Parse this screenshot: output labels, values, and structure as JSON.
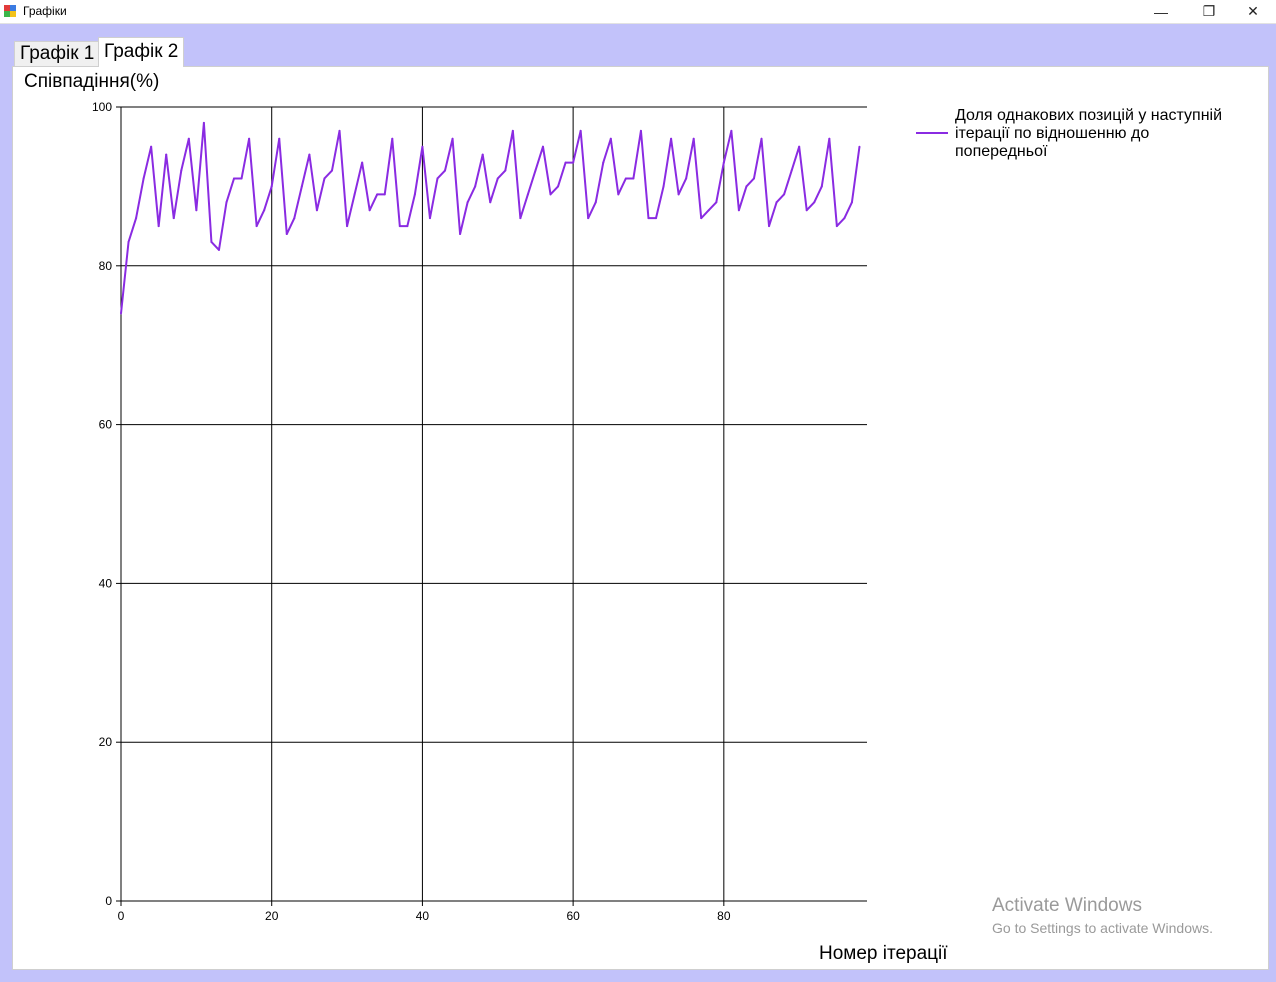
{
  "window": {
    "title": "Графіки",
    "minimize": "—",
    "maximize": "❐",
    "close": "✕"
  },
  "tabs": [
    {
      "label": "Графік 1",
      "selected": false
    },
    {
      "label": "Графік 2",
      "selected": true
    }
  ],
  "chart_data": {
    "type": "line",
    "title": "",
    "ylabel": "Співпадіння(%)",
    "xlabel": "Номер ітерації",
    "xlim": [
      0,
      99
    ],
    "ylim": [
      0,
      100
    ],
    "xticks": [
      "0",
      "20",
      "40",
      "60",
      "80"
    ],
    "yticks": [
      "0",
      "20",
      "40",
      "60",
      "80",
      "100"
    ],
    "grid": true,
    "legend_position": "top-right",
    "series": [
      {
        "name": "Доля однакових позицій у наступній ітерації по відношенню до попередньої",
        "color": "#8a2be2",
        "x": [
          0,
          1,
          2,
          3,
          4,
          5,
          6,
          7,
          8,
          9,
          10,
          11,
          12,
          13,
          14,
          15,
          16,
          17,
          18,
          19,
          20,
          21,
          22,
          23,
          24,
          25,
          26,
          27,
          28,
          29,
          30,
          31,
          32,
          33,
          34,
          35,
          36,
          37,
          38,
          39,
          40,
          41,
          42,
          43,
          44,
          45,
          46,
          47,
          48,
          49,
          50,
          51,
          52,
          53,
          54,
          55,
          56,
          57,
          58,
          59,
          60,
          61,
          62,
          63,
          64,
          65,
          66,
          67,
          68,
          69,
          70,
          71,
          72,
          73,
          74,
          75,
          76,
          77,
          78,
          79,
          80,
          81,
          82,
          83,
          84,
          85,
          86,
          87,
          88,
          89,
          90,
          91,
          92,
          93,
          94,
          95,
          96,
          97,
          98
        ],
        "values": [
          74,
          83,
          86,
          91,
          95,
          85,
          94,
          86,
          92,
          96,
          87,
          98,
          83,
          82,
          88,
          91,
          91,
          96,
          85,
          87,
          90,
          96,
          84,
          86,
          90,
          94,
          87,
          91,
          92,
          97,
          85,
          89,
          93,
          87,
          89,
          89,
          96,
          85,
          85,
          89,
          95,
          86,
          91,
          92,
          96,
          84,
          88,
          90,
          94,
          88,
          91,
          92,
          97,
          86,
          89,
          92,
          95,
          89,
          90,
          93,
          93,
          97,
          86,
          88,
          93,
          96,
          89,
          91,
          91,
          97,
          86,
          86,
          90,
          96,
          89,
          91,
          96,
          86,
          87,
          88,
          93,
          97,
          87,
          90,
          91,
          96,
          85,
          88,
          89,
          92,
          95,
          87,
          88,
          90,
          96,
          85,
          86,
          88,
          95
        ]
      }
    ]
  },
  "watermark": {
    "line1": "Activate Windows",
    "line2": "Go to Settings to activate Windows."
  }
}
